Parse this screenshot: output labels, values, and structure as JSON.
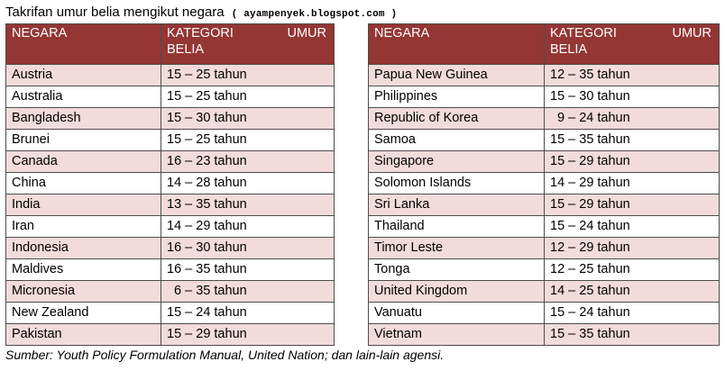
{
  "title": "Takrifan umur belia mengikut negara",
  "source_tag": "( ayampenyek.blogspot.com )",
  "headers": {
    "country": "NEGARA",
    "category_1": "KATEGORI",
    "category_2": "UMUR",
    "category_3": "BELIA"
  },
  "left_rows": [
    {
      "country": "Austria",
      "range": "15 – 25 tahun"
    },
    {
      "country": "Australia",
      "range": "15 – 25 tahun"
    },
    {
      "country": "Bangladesh",
      "range": "15 – 30 tahun"
    },
    {
      "country": "Brunei",
      "range": "15 – 25 tahun"
    },
    {
      "country": "Canada",
      "range": "16 – 23 tahun"
    },
    {
      "country": "China",
      "range": "14 – 28 tahun"
    },
    {
      "country": "India",
      "range": "13 – 35 tahun"
    },
    {
      "country": "Iran",
      "range": "14 – 29 tahun"
    },
    {
      "country": "Indonesia",
      "range": "16 – 30 tahun"
    },
    {
      "country": "Maldives",
      "range": "16 – 35 tahun"
    },
    {
      "country": "Micronesia",
      "range": "  6 – 35 tahun"
    },
    {
      "country": "New Zealand",
      "range": "15 – 24 tahun"
    },
    {
      "country": "Pakistan",
      "range": "15 – 29 tahun"
    }
  ],
  "right_rows": [
    {
      "country": "Papua New Guinea",
      "range": "12 – 35 tahun"
    },
    {
      "country": "Philippines",
      "range": "15 – 30 tahun"
    },
    {
      "country": "Republic of Korea",
      "range": "  9 – 24 tahun"
    },
    {
      "country": "Samoa",
      "range": "15 – 35 tahun"
    },
    {
      "country": "Singapore",
      "range": "15 – 29 tahun"
    },
    {
      "country": "Solomon Islands",
      "range": "14 – 29 tahun"
    },
    {
      "country": "Sri Lanka",
      "range": "15 – 29 tahun"
    },
    {
      "country": "Thailand",
      "range": "15 – 24 tahun"
    },
    {
      "country": "Timor Leste",
      "range": "12 – 29 tahun"
    },
    {
      "country": "Tonga",
      "range": "12 – 25 tahun"
    },
    {
      "country": "United Kingdom",
      "range": "14 – 25 tahun"
    },
    {
      "country": "Vanuatu",
      "range": "15 – 24 tahun"
    },
    {
      "country": "Vietnam",
      "range": "15 – 35 tahun"
    }
  ],
  "footer": "Sumber: Youth Policy Formulation Manual, United Nation; dan lain-lain agensi."
}
